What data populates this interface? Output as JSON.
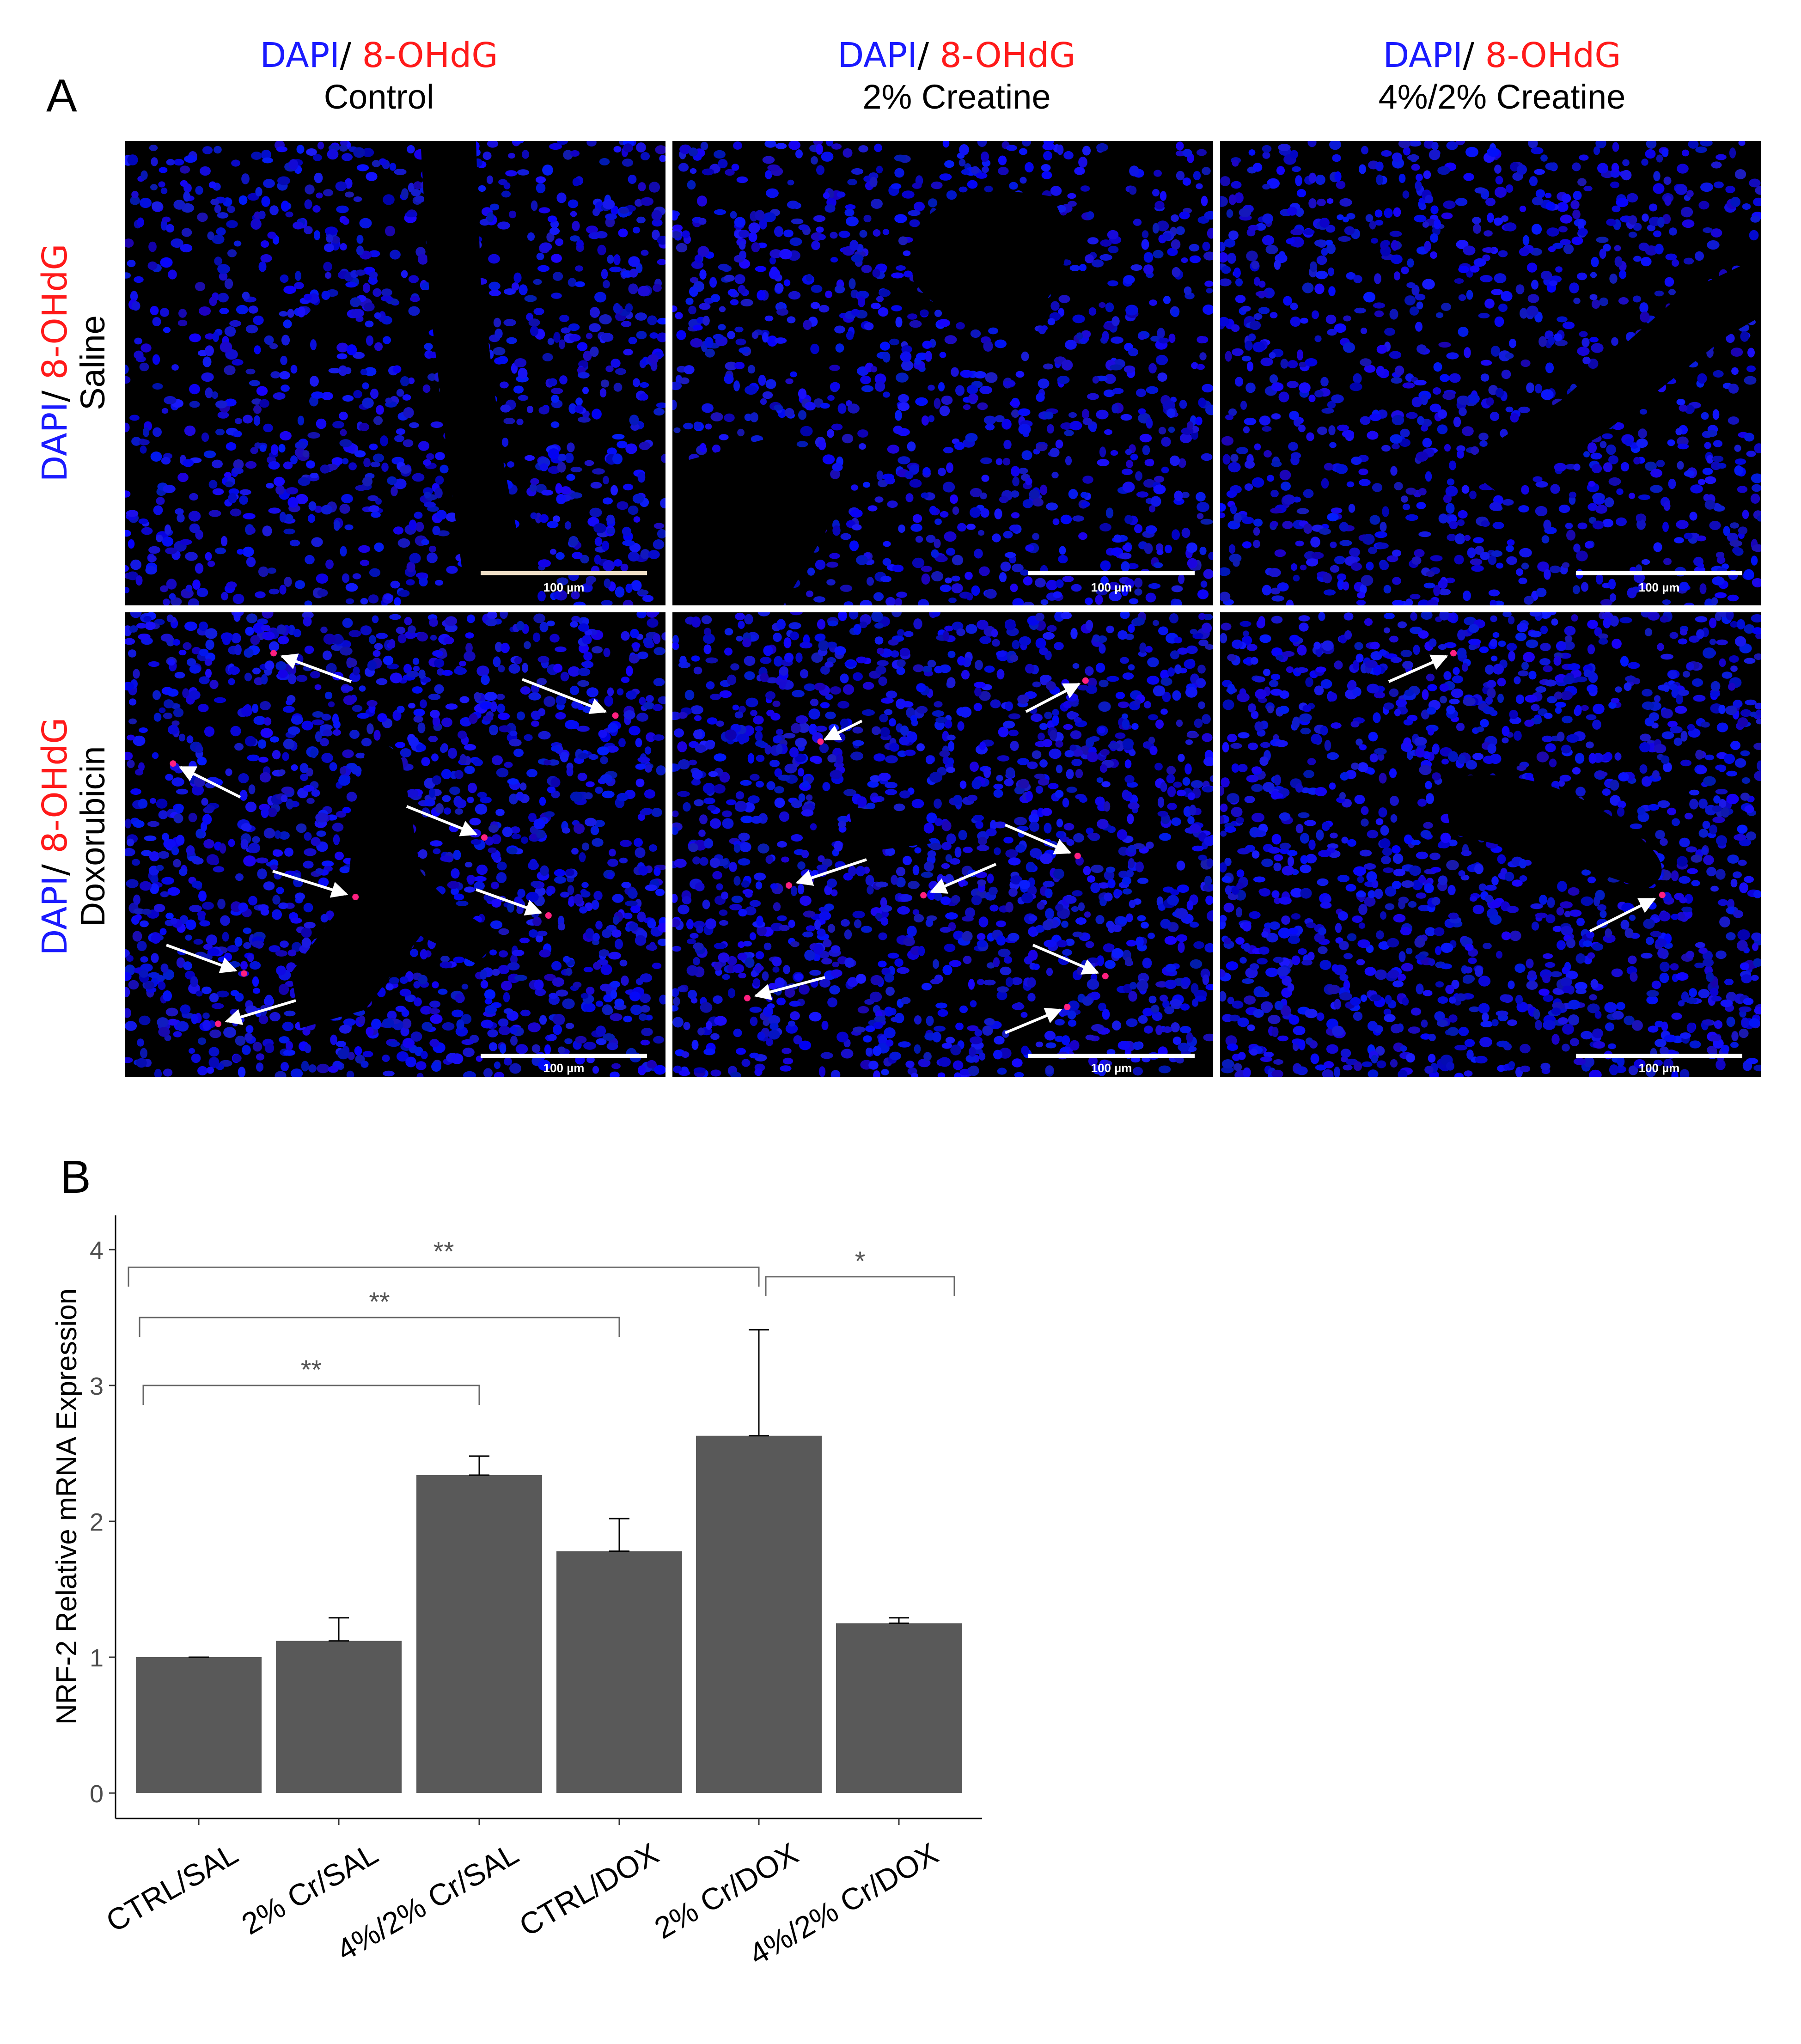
{
  "panel_a": {
    "letter": "A",
    "stain_dapi": "DAPI",
    "stain_sep": "/ ",
    "stain_ohdg": "8-OHdG",
    "columns": [
      "Control",
      "2% Creatine",
      "4%/2% Creatine"
    ],
    "rows": [
      "Saline",
      "Doxorubicin"
    ],
    "scale_bar_label": "100 µm",
    "colors": {
      "dapi": "#1a1aff",
      "ohdg": "#ff1a1a",
      "background": "#000000",
      "nuclei": "#1414e6",
      "foci": "#ff2080"
    }
  },
  "panel_b": {
    "letter": "B"
  },
  "chart_data": {
    "type": "bar",
    "title": "",
    "xlabel": "",
    "ylabel": "NRF-2 Relative mRNA Expression",
    "ylim": [
      0,
      4
    ],
    "yticks": [
      "0",
      "1",
      "2",
      "3",
      "4"
    ],
    "categories": [
      "CTRL/SAL",
      "2% Cr/SAL",
      "4%/2% Cr/SAL",
      "CTRL/DOX",
      "2% Cr/DOX",
      "4%/2% Cr/DOX"
    ],
    "values": [
      1.0,
      1.12,
      2.34,
      1.78,
      2.63,
      1.25
    ],
    "error_upper": [
      0.0,
      0.17,
      0.14,
      0.24,
      0.78,
      0.04
    ],
    "bar_color": "#595959",
    "significance": [
      {
        "from": "CTRL/SAL",
        "to": "4%/2% Cr/SAL",
        "label": "**"
      },
      {
        "from": "CTRL/SAL",
        "to": "CTRL/DOX",
        "label": "**"
      },
      {
        "from": "CTRL/SAL",
        "to": "2% Cr/DOX",
        "label": "**"
      },
      {
        "from": "2% Cr/DOX",
        "to": "4%/2% Cr/DOX",
        "label": "*"
      }
    ]
  }
}
